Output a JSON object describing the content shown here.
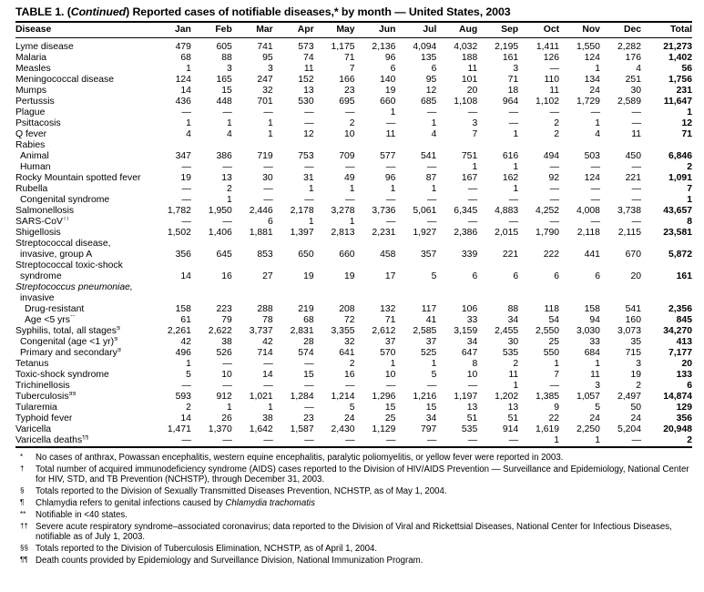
{
  "title": {
    "prefix": "TABLE 1. (",
    "continued": "Continued",
    "suffix": ") Reported cases of notifiable diseases,* by month — United States, 2003"
  },
  "table": {
    "columns": [
      "Disease",
      "Jan",
      "Feb",
      "Mar",
      "Apr",
      "May",
      "Jun",
      "Jul",
      "Aug",
      "Sep",
      "Oct",
      "Nov",
      "Dec",
      "Total"
    ],
    "rows": [
      {
        "lines": [
          "Lyme disease"
        ],
        "indent": 0,
        "values": [
          "479",
          "605",
          "741",
          "573",
          "1,175",
          "2,136",
          "4,094",
          "4,032",
          "2,195",
          "1,411",
          "1,550",
          "2,282",
          "21,273"
        ]
      },
      {
        "lines": [
          "Malaria"
        ],
        "indent": 0,
        "values": [
          "68",
          "88",
          "95",
          "74",
          "71",
          "96",
          "135",
          "188",
          "161",
          "126",
          "124",
          "176",
          "1,402"
        ]
      },
      {
        "lines": [
          "Measles"
        ],
        "indent": 0,
        "values": [
          "1",
          "3",
          "3",
          "11",
          "7",
          "6",
          "6",
          "11",
          "3",
          "—",
          "1",
          "4",
          "56"
        ]
      },
      {
        "lines": [
          "Meningococcal disease"
        ],
        "indent": 0,
        "values": [
          "124",
          "165",
          "247",
          "152",
          "166",
          "140",
          "95",
          "101",
          "71",
          "110",
          "134",
          "251",
          "1,756"
        ]
      },
      {
        "lines": [
          "Mumps"
        ],
        "indent": 0,
        "values": [
          "14",
          "15",
          "32",
          "13",
          "23",
          "19",
          "12",
          "20",
          "18",
          "11",
          "24",
          "30",
          "231"
        ]
      },
      {
        "lines": [
          "Pertussis"
        ],
        "indent": 0,
        "values": [
          "436",
          "448",
          "701",
          "530",
          "695",
          "660",
          "685",
          "1,108",
          "964",
          "1,102",
          "1,729",
          "2,589",
          "11,647"
        ]
      },
      {
        "lines": [
          "Plague"
        ],
        "indent": 0,
        "values": [
          "—",
          "—",
          "—",
          "—",
          "—",
          "1",
          "—",
          "—",
          "—",
          "—",
          "—",
          "—",
          "1"
        ]
      },
      {
        "lines": [
          "Psittacosis"
        ],
        "indent": 0,
        "values": [
          "1",
          "1",
          "1",
          "—",
          "2",
          "—",
          "1",
          "3",
          "—",
          "2",
          "1",
          "—",
          "12"
        ]
      },
      {
        "lines": [
          "Q fever"
        ],
        "indent": 0,
        "values": [
          "4",
          "4",
          "1",
          "12",
          "10",
          "11",
          "4",
          "7",
          "1",
          "2",
          "4",
          "11",
          "71"
        ]
      },
      {
        "lines": [
          "Rabies"
        ],
        "indent": 0,
        "values": []
      },
      {
        "lines": [
          "Animal"
        ],
        "indent": 1,
        "values": [
          "347",
          "386",
          "719",
          "753",
          "709",
          "577",
          "541",
          "751",
          "616",
          "494",
          "503",
          "450",
          "6,846"
        ]
      },
      {
        "lines": [
          "Human"
        ],
        "indent": 1,
        "values": [
          "—",
          "—",
          "—",
          "—",
          "—",
          "—",
          "—",
          "1",
          "1",
          "—",
          "—",
          "—",
          "2"
        ]
      },
      {
        "lines": [
          "Rocky Mountain spotted fever"
        ],
        "indent": 0,
        "values": [
          "19",
          "13",
          "30",
          "31",
          "49",
          "96",
          "87",
          "167",
          "162",
          "92",
          "124",
          "221",
          "1,091"
        ]
      },
      {
        "lines": [
          "Rubella"
        ],
        "indent": 0,
        "values": [
          "—",
          "2",
          "—",
          "1",
          "1",
          "1",
          "1",
          "—",
          "1",
          "—",
          "—",
          "—",
          "7"
        ]
      },
      {
        "lines": [
          "Congenital syndrome"
        ],
        "indent": 1,
        "values": [
          "—",
          "1",
          "—",
          "—",
          "—",
          "—",
          "—",
          "—",
          "—",
          "—",
          "—",
          "—",
          "1"
        ]
      },
      {
        "lines": [
          "Salmonellosis"
        ],
        "indent": 0,
        "values": [
          "1,782",
          "1,950",
          "2,446",
          "2,178",
          "3,278",
          "3,736",
          "5,061",
          "6,345",
          "4,883",
          "4,252",
          "4,008",
          "3,738",
          "43,657"
        ]
      },
      {
        "lines": [
          "SARS-CoV"
        ],
        "sup": "††",
        "indent": 0,
        "values": [
          "—",
          "—",
          "6",
          "1",
          "1",
          "—",
          "—",
          "—",
          "—",
          "—",
          "—",
          "—",
          "8"
        ]
      },
      {
        "lines": [
          "Shigellosis"
        ],
        "indent": 0,
        "values": [
          "1,502",
          "1,406",
          "1,881",
          "1,397",
          "2,813",
          "2,231",
          "1,927",
          "2,386",
          "2,015",
          "1,790",
          "2,118",
          "2,115",
          "23,581"
        ]
      },
      {
        "lines": [
          "Streptococcal disease,",
          "invasive, group A"
        ],
        "indent": 0,
        "values": [
          "356",
          "645",
          "853",
          "650",
          "660",
          "458",
          "357",
          "339",
          "221",
          "222",
          "441",
          "670",
          "5,872"
        ]
      },
      {
        "lines": [
          "Streptococcal toxic-shock",
          "syndrome"
        ],
        "indent": 0,
        "values": [
          "14",
          "16",
          "27",
          "19",
          "19",
          "17",
          "5",
          "6",
          "6",
          "6",
          "6",
          "20",
          "161"
        ]
      },
      {
        "lines": [
          "Streptococcus pneumoniae,",
          "invasive"
        ],
        "indent": 0,
        "italic": true,
        "values": []
      },
      {
        "lines": [
          "Drug-resistant"
        ],
        "indent": 2,
        "values": [
          "158",
          "223",
          "288",
          "219",
          "208",
          "132",
          "117",
          "106",
          "88",
          "118",
          "158",
          "541",
          "2,356"
        ]
      },
      {
        "lines": [
          "Age <5 yrs"
        ],
        "sup": "**",
        "indent": 2,
        "values": [
          "61",
          "79",
          "78",
          "68",
          "72",
          "71",
          "41",
          "33",
          "34",
          "54",
          "94",
          "160",
          "845"
        ]
      },
      {
        "lines": [
          "Syphilis, total, all stages"
        ],
        "sup": "§",
        "indent": 0,
        "values": [
          "2,261",
          "2,622",
          "3,737",
          "2,831",
          "3,355",
          "2,612",
          "2,585",
          "3,159",
          "2,455",
          "2,550",
          "3,030",
          "3,073",
          "34,270"
        ]
      },
      {
        "lines": [
          "Congenital (age <1 yr)"
        ],
        "sup": "§",
        "indent": 1,
        "values": [
          "42",
          "38",
          "42",
          "28",
          "32",
          "37",
          "37",
          "34",
          "30",
          "25",
          "33",
          "35",
          "413"
        ]
      },
      {
        "lines": [
          "Primary and secondary"
        ],
        "sup": "§",
        "indent": 1,
        "values": [
          "496",
          "526",
          "714",
          "574",
          "641",
          "570",
          "525",
          "647",
          "535",
          "550",
          "684",
          "715",
          "7,177"
        ]
      },
      {
        "lines": [
          "Tetanus"
        ],
        "indent": 0,
        "values": [
          "1",
          "—",
          "—",
          "—",
          "2",
          "1",
          "1",
          "8",
          "2",
          "1",
          "1",
          "3",
          "20"
        ]
      },
      {
        "lines": [
          "Toxic-shock syndrome"
        ],
        "indent": 0,
        "values": [
          "5",
          "10",
          "14",
          "15",
          "16",
          "10",
          "5",
          "10",
          "11",
          "7",
          "11",
          "19",
          "133"
        ]
      },
      {
        "lines": [
          "Trichinellosis"
        ],
        "indent": 0,
        "values": [
          "—",
          "—",
          "—",
          "—",
          "—",
          "—",
          "—",
          "—",
          "1",
          "—",
          "3",
          "2",
          "6"
        ]
      },
      {
        "lines": [
          "Tuberculosis"
        ],
        "sup": "§§",
        "indent": 0,
        "values": [
          "593",
          "912",
          "1,021",
          "1,284",
          "1,214",
          "1,296",
          "1,216",
          "1,197",
          "1,202",
          "1,385",
          "1,057",
          "2,497",
          "14,874"
        ]
      },
      {
        "lines": [
          "Tularemia"
        ],
        "indent": 0,
        "values": [
          "2",
          "1",
          "1",
          "—",
          "5",
          "15",
          "15",
          "13",
          "13",
          "9",
          "5",
          "50",
          "129"
        ]
      },
      {
        "lines": [
          "Typhoid fever"
        ],
        "indent": 0,
        "values": [
          "14",
          "26",
          "38",
          "23",
          "24",
          "25",
          "34",
          "51",
          "51",
          "22",
          "24",
          "24",
          "356"
        ]
      },
      {
        "lines": [
          "Varicella"
        ],
        "indent": 0,
        "values": [
          "1,471",
          "1,370",
          "1,642",
          "1,587",
          "2,430",
          "1,129",
          "797",
          "535",
          "914",
          "1,619",
          "2,250",
          "5,204",
          "20,948"
        ]
      },
      {
        "lines": [
          "Varicella deaths"
        ],
        "sup": "¶¶",
        "indent": 0,
        "values": [
          "—",
          "—",
          "—",
          "—",
          "—",
          "—",
          "—",
          "—",
          "—",
          "1",
          "1",
          "—",
          "2"
        ]
      }
    ]
  },
  "footnotes": [
    {
      "marker": "*",
      "text": "No cases of anthrax, Powassan encephalitis, western equine encephalitis, paralytic poliomyelitis, or yellow fever were reported in 2003."
    },
    {
      "marker": "†",
      "text": "Total number of acquired immunodeficiency syndrome (AIDS) cases reported to the Division of HIV/AIDS Prevention — Surveillance and Epidemiology, National Center for HIV, STD, and TB Prevention (NCHSTP), through December 31, 2003."
    },
    {
      "marker": "§",
      "text": "Totals reported to the Division of Sexually Transmitted Diseases Prevention, NCHSTP, as of May 1, 2004."
    },
    {
      "marker": "¶",
      "text": "Chlamydia refers to genital infections caused by ",
      "italic_text": "Chlamydia trachomatis"
    },
    {
      "marker": "**",
      "text": "Notifiable in <40 states."
    },
    {
      "marker": "††",
      "text": "Severe acute respiratory syndrome–associated coronavirus; data reported to the Division of Viral and Rickettsial Diseases, National Center for Infectious Diseases, notifiable as of July 1, 2003."
    },
    {
      "marker": "§§",
      "text": "Totals reported to the Division of Tuberculosis Elimination, NCHSTP, as of April 1, 2004."
    },
    {
      "marker": "¶¶",
      "text": "Death counts provided by Epidemiology and Surveillance Division, National Immunization Program."
    }
  ]
}
